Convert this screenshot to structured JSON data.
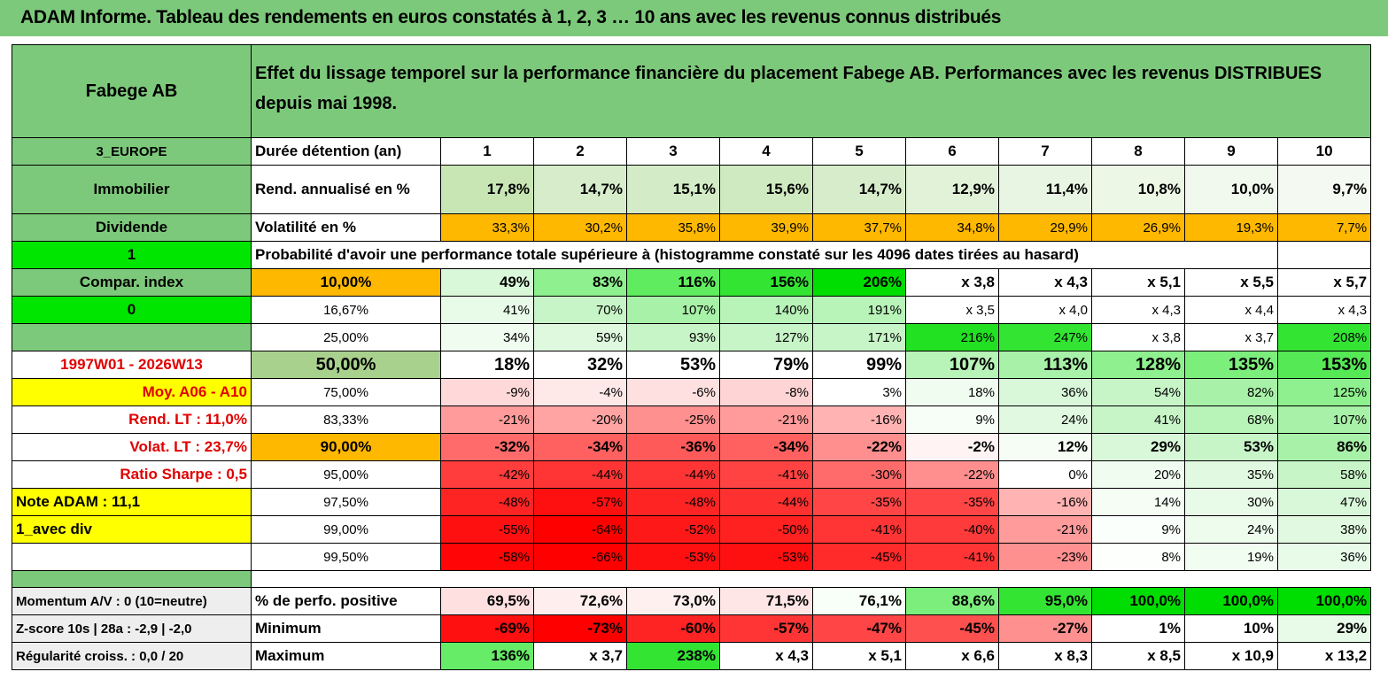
{
  "title": "ADAM Informe. Tableau des rendements en euros constatés à 1, 2, 3 … 10 ans avec les revenus connus distribués",
  "header": {
    "name": "Fabege AB",
    "description": "Effet du lissage temporel sur la performance financière du placement Fabege AB. Performances avec les revenus DISTRIBUES depuis mai 1998."
  },
  "side": {
    "region": "3_EUROPE",
    "sector": "Immobilier",
    "type": "Dividende",
    "flag1": "1",
    "compar": "Compar. index",
    "flag0": "0",
    "period": "1997W01 - 2026W13",
    "moy": "Moy. A06 - A10",
    "rend_lt": "Rend. LT :   11,0%",
    "volat_lt": "Volat. LT :   23,7%",
    "sharpe": "Ratio Sharpe :    0,5",
    "note": "Note ADAM : 11,1",
    "avec_div": "1_avec div",
    "momentum": "Momentum A/V : 0 (10=neutre)",
    "zscore": "Z-score 10s | 28a : -2,9 | -2,0",
    "regularite": "Régularité croiss. : 0,0 / 20"
  },
  "labels": {
    "duree": "Durée détention (an)",
    "rend": "Rend. annualisé en %",
    "volat": "Volatilité en %",
    "proba": "Probabilité d'avoir une performance totale supérieure à (histogramme constaté sur les 4096 dates tirées au hasard)",
    "pos": "% de perfo. positive",
    "min": "Minimum",
    "max": "Maximum"
  },
  "years": [
    "1",
    "2",
    "3",
    "4",
    "5",
    "6",
    "7",
    "8",
    "9",
    "10"
  ],
  "rend": [
    "17,8%",
    "14,7%",
    "15,1%",
    "15,6%",
    "14,7%",
    "12,9%",
    "11,4%",
    "10,8%",
    "10,0%",
    "9,7%"
  ],
  "volat": [
    "33,3%",
    "30,2%",
    "35,8%",
    "39,9%",
    "37,7%",
    "34,8%",
    "29,9%",
    "26,9%",
    "19,3%",
    "7,7%"
  ],
  "quantiles": [
    {
      "p": "10,00%",
      "v": [
        "49%",
        "83%",
        "116%",
        "156%",
        "206%",
        "x 3,8",
        "x 4,3",
        "x 5,1",
        "x 5,5",
        "x 5,7"
      ]
    },
    {
      "p": "16,67%",
      "v": [
        "41%",
        "70%",
        "107%",
        "140%",
        "191%",
        "x 3,5",
        "x 4,0",
        "x 4,3",
        "x 4,4",
        "x 4,3"
      ]
    },
    {
      "p": "25,00%",
      "v": [
        "34%",
        "59%",
        "93%",
        "127%",
        "171%",
        "216%",
        "247%",
        "x 3,8",
        "x 3,7",
        "208%"
      ]
    },
    {
      "p": "50,00%",
      "v": [
        "18%",
        "32%",
        "53%",
        "79%",
        "99%",
        "107%",
        "113%",
        "128%",
        "135%",
        "153%"
      ]
    },
    {
      "p": "75,00%",
      "v": [
        "-9%",
        "-4%",
        "-6%",
        "-8%",
        "3%",
        "18%",
        "36%",
        "54%",
        "82%",
        "125%"
      ]
    },
    {
      "p": "83,33%",
      "v": [
        "-21%",
        "-20%",
        "-25%",
        "-21%",
        "-16%",
        "9%",
        "24%",
        "41%",
        "68%",
        "107%"
      ]
    },
    {
      "p": "90,00%",
      "v": [
        "-32%",
        "-34%",
        "-36%",
        "-34%",
        "-22%",
        "-2%",
        "12%",
        "29%",
        "53%",
        "86%"
      ]
    },
    {
      "p": "95,00%",
      "v": [
        "-42%",
        "-44%",
        "-44%",
        "-41%",
        "-30%",
        "-22%",
        "0%",
        "20%",
        "35%",
        "58%"
      ]
    },
    {
      "p": "97,50%",
      "v": [
        "-48%",
        "-57%",
        "-48%",
        "-44%",
        "-35%",
        "-35%",
        "-16%",
        "14%",
        "30%",
        "47%"
      ]
    },
    {
      "p": "99,00%",
      "v": [
        "-55%",
        "-64%",
        "-52%",
        "-50%",
        "-41%",
        "-40%",
        "-21%",
        "9%",
        "24%",
        "38%"
      ]
    },
    {
      "p": "99,50%",
      "v": [
        "-58%",
        "-66%",
        "-53%",
        "-53%",
        "-45%",
        "-41%",
        "-23%",
        "8%",
        "19%",
        "36%"
      ]
    }
  ],
  "pos": [
    "69,5%",
    "72,6%",
    "73,0%",
    "71,5%",
    "76,1%",
    "88,6%",
    "95,0%",
    "100,0%",
    "100,0%",
    "100,0%"
  ],
  "min": [
    "-69%",
    "-73%",
    "-60%",
    "-57%",
    "-47%",
    "-45%",
    "-27%",
    "1%",
    "10%",
    "29%"
  ],
  "max": [
    "136%",
    "x 3,7",
    "238%",
    "x 4,3",
    "x 5,1",
    "x 6,6",
    "x 8,3",
    "x 8,5",
    "x 10,9",
    "x 13,2"
  ],
  "colors": {
    "quantiles": [
      [
        "#d9f7d9",
        "#8ef08e",
        "#5fec5f",
        "#33e433",
        "#00dd00",
        "#ffffff",
        "#ffffff",
        "#ffffff",
        "#ffffff",
        "#ffffff"
      ],
      [
        "#e8fbe8",
        "#c8f5c8",
        "#a8f1a8",
        "#b8f3b8",
        "#b8f3b8",
        "#ffffff",
        "#ffffff",
        "#ffffff",
        "#ffffff",
        "#ffffff"
      ],
      [
        "#f0fcf0",
        "#dff9df",
        "#c8f5c8",
        "#c8f5c8",
        "#c8f5c8",
        "#22e022",
        "#33e433",
        "#ffffff",
        "#ffffff",
        "#33e433"
      ],
      [
        "#ffffff",
        "#ffffff",
        "#ffffff",
        "#ffffff",
        "#ffffff",
        "#b8f3b8",
        "#a8f1a8",
        "#8ef08e",
        "#7cee7c",
        "#55e955"
      ],
      [
        "#ffd9d9",
        "#ffe8e8",
        "#ffe0e0",
        "#ffd4d4",
        "#ffffff",
        "#f0fcf0",
        "#d9f7d9",
        "#c8f5c8",
        "#a8f1a8",
        "#8ef08e"
      ],
      [
        "#ff9b9b",
        "#ffa3a3",
        "#ff9090",
        "#ff9b9b",
        "#ffb3b3",
        "#f7fef7",
        "#e0f9e0",
        "#c8f5c8",
        "#b8f3b8",
        "#a8f1a8"
      ],
      [
        "#ff6b6b",
        "#ff6060",
        "#ff5a5a",
        "#ff6060",
        "#ff8f8f",
        "#fff3f3",
        "#f5fdf5",
        "#d9f7d9",
        "#c8f5c8",
        "#a8f1a8"
      ],
      [
        "#ff3d3d",
        "#ff3535",
        "#ff3535",
        "#ff4242",
        "#ff6b6b",
        "#ff8f8f",
        "#ffffff",
        "#f0fcf0",
        "#e0f9e0",
        "#c8f5c8"
      ],
      [
        "#ff2424",
        "#ff1010",
        "#ff2424",
        "#ff3030",
        "#ff4545",
        "#ff4545",
        "#ffb3b3",
        "#f5fdf5",
        "#e8fbe8",
        "#d9f7d9"
      ],
      [
        "#ff1010",
        "#ff0000",
        "#ff1818",
        "#ff2020",
        "#ff3535",
        "#ff3a3a",
        "#ff9b9b",
        "#fbfffb",
        "#eefcee",
        "#e0f9e0"
      ],
      [
        "#ff0505",
        "#ff0000",
        "#ff1010",
        "#ff1010",
        "#ff2a2a",
        "#ff3535",
        "#ff9090",
        "#fdfffd",
        "#f2fdf2",
        "#e8fbe8"
      ]
    ],
    "pos": [
      "#ffe0e0",
      "#ffeeee",
      "#fff0f0",
      "#ffe6e6",
      "#f8fef8",
      "#7cee7c",
      "#33e433",
      "#00dd00",
      "#00dd00",
      "#00dd00"
    ],
    "min": [
      "#ff1010",
      "#ff0000",
      "#ff2424",
      "#ff3535",
      "#ff4545",
      "#ff5050",
      "#ff9090",
      "#ffffff",
      "#ffffff",
      "#e8fbe8"
    ],
    "max": [
      "#66ec66",
      "#ffffff",
      "#33e433",
      "#ffffff",
      "#ffffff",
      "#ffffff",
      "#ffffff",
      "#ffffff",
      "#ffffff",
      "#ffffff"
    ],
    "rend": [
      "#c8e6b4",
      "#d6eccb",
      "#d3ebc6",
      "#cfe9c0",
      "#d6eccb",
      "#e1f2d9",
      "#e8f5e2",
      "#ecf7e6",
      "#f1f9ee",
      "#f4faf1"
    ],
    "accent": "#7dc97b",
    "orange": "#ffb800"
  }
}
